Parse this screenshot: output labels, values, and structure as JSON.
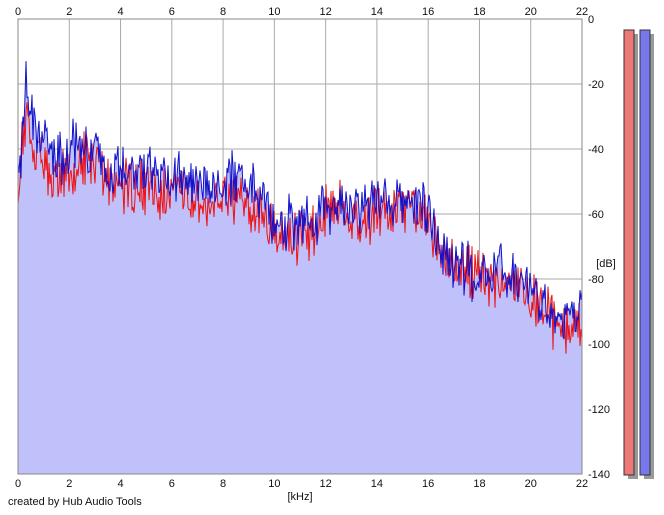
{
  "credit": "created by Hub Audio Tools",
  "chart_data": {
    "type": "area",
    "title": "",
    "xlabel": "[kHz]",
    "ylabel": "[dB]",
    "xlim": [
      0,
      22
    ],
    "ylim": [
      -140,
      0
    ],
    "x_ticks": [
      0,
      2,
      4,
      6,
      8,
      10,
      12,
      14,
      16,
      18,
      20,
      22
    ],
    "y_ticks": [
      0,
      -20,
      -40,
      -60,
      -80,
      -100,
      -120,
      -140
    ],
    "y_tick_labels": [
      "0",
      "-20",
      "-40",
      "-60",
      "-80",
      "-100",
      "-120",
      "-140"
    ],
    "grid": true,
    "colors": {
      "fill": "#c0c0fa",
      "left": "#ee1111",
      "right": "#1111cc",
      "grid": "#aaaaaa"
    },
    "series": [
      {
        "color": "#ee1111",
        "x": [
          0,
          0.2,
          0.3,
          0.5,
          1,
          1.5,
          2,
          2.5,
          3,
          3.5,
          4,
          4.5,
          5,
          5.5,
          6,
          6.5,
          7,
          7.5,
          8,
          8.5,
          9,
          9.5,
          10,
          10.5,
          11,
          11.5,
          12,
          12.5,
          13,
          13.5,
          14,
          14.5,
          15,
          15.5,
          16,
          16.5,
          17,
          17.5,
          18,
          18.5,
          19,
          19.5,
          20,
          20.5,
          21,
          21.5,
          22
        ],
        "values": [
          -52,
          -38,
          -28,
          -38,
          -45,
          -49,
          -49,
          -44,
          -45,
          -50,
          -51,
          -52,
          -52,
          -55,
          -53,
          -55,
          -57,
          -56,
          -56,
          -56,
          -58,
          -60,
          -65,
          -67,
          -67,
          -66,
          -58,
          -56,
          -60,
          -62,
          -58,
          -60,
          -58,
          -58,
          -63,
          -70,
          -75,
          -78,
          -80,
          -80,
          -81,
          -81,
          -84,
          -90,
          -94,
          -95,
          -94
        ]
      },
      {
        "color": "#1111cc",
        "x": [
          0,
          0.2,
          0.3,
          0.5,
          1,
          1.5,
          2,
          2.5,
          3,
          3.5,
          4,
          4.5,
          5,
          5.5,
          6,
          6.5,
          7,
          7.5,
          8,
          8.5,
          9,
          9.5,
          10,
          10.5,
          11,
          11.5,
          12,
          12.5,
          13,
          13.5,
          14,
          14.5,
          15,
          15.5,
          16,
          16.5,
          17,
          17.5,
          18,
          18.5,
          19,
          19.5,
          20,
          20.5,
          21,
          21.5,
          22
        ],
        "values": [
          -50,
          -35,
          -15,
          -32,
          -38,
          -44,
          -40,
          -38,
          -40,
          -45,
          -45,
          -47,
          -48,
          -48,
          -48,
          -50,
          -50,
          -50,
          -50,
          -50,
          -51,
          -52,
          -62,
          -62,
          -63,
          -62,
          -58,
          -56,
          -58,
          -57,
          -55,
          -56,
          -55,
          -56,
          -60,
          -70,
          -76,
          -77,
          -79,
          -78,
          -78,
          -78,
          -82,
          -88,
          -91,
          -91,
          -90
        ]
      }
    ],
    "level_meters": [
      {
        "color": "#ee7777"
      },
      {
        "color": "#7777ee"
      }
    ]
  }
}
